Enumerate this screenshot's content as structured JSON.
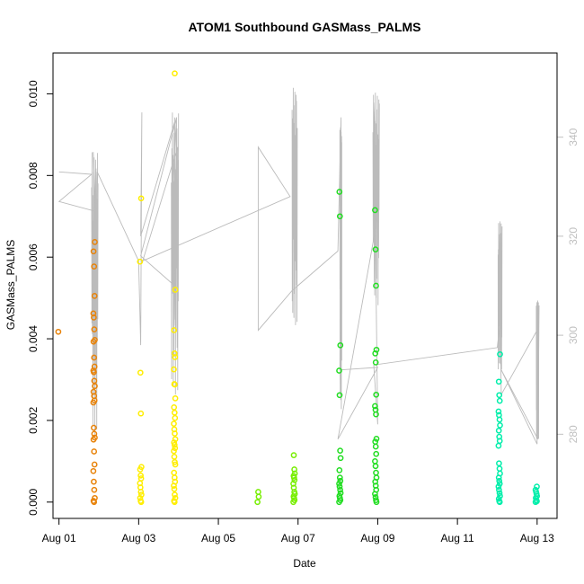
{
  "chart_data": {
    "type": "scatter",
    "title": "ATOM1 Southbound GASMass_PALMS",
    "xlabel": "Date",
    "ylabel": "GASMass_PALMS",
    "x_ticks": [
      "Aug 01",
      "Aug 03",
      "Aug 05",
      "Aug 07",
      "Aug 09",
      "Aug 11",
      "Aug 13"
    ],
    "x_tick_days": [
      1,
      3,
      5,
      7,
      9,
      11,
      13
    ],
    "xlim": [
      0.85,
      13.5
    ],
    "ylim": [
      -0.0004,
      0.011
    ],
    "y_ticks": [
      0.0,
      0.002,
      0.004,
      0.006,
      0.008,
      0.01
    ],
    "y_tick_labels": [
      "0.000",
      "0.002",
      "0.004",
      "0.006",
      "0.008",
      "0.010"
    ],
    "right_axis": {
      "ylim": [
        263,
        357
      ],
      "ticks": [
        280,
        300,
        320,
        340
      ],
      "tick_labels": [
        "280",
        "300",
        "320",
        "340"
      ],
      "color": "#c0c0c0"
    },
    "right_line": {
      "color": "#bbbbbb",
      "points": [
        [
          1.0,
          333
        ],
        [
          1.82,
          332.5
        ],
        [
          1.0,
          327
        ],
        [
          1.92,
          325
        ],
        [
          1.86,
          337
        ],
        [
          1.92,
          318
        ],
        [
          1.96,
          333
        ],
        [
          3.0,
          315
        ],
        [
          3.05,
          298
        ],
        [
          3.08,
          345
        ],
        [
          3.05,
          320
        ],
        [
          3.9,
          343
        ],
        [
          3.9,
          314
        ],
        [
          3.95,
          344
        ],
        [
          3.05,
          316
        ],
        [
          3.9,
          310
        ],
        [
          3.95,
          344
        ],
        [
          3.85,
          330
        ],
        [
          3.92,
          302
        ],
        [
          3.98,
          338
        ],
        [
          3.1,
          315
        ],
        [
          6.8,
          328
        ],
        [
          6.0,
          338
        ],
        [
          6.0,
          301
        ],
        [
          6.85,
          309
        ],
        [
          8.0,
          317
        ],
        [
          8.08,
          344
        ],
        [
          8.05,
          293
        ],
        [
          9.0,
          293.5
        ],
        [
          8.0,
          279
        ],
        [
          9.0,
          324
        ],
        [
          8.9,
          347
        ],
        [
          9.0,
          282
        ],
        [
          8.9,
          294
        ],
        [
          12.0,
          297.5
        ],
        [
          12.1,
          305
        ],
        [
          12.05,
          319
        ],
        [
          12.1,
          288
        ],
        [
          13.0,
          301
        ],
        [
          13.0,
          278
        ],
        [
          12.1,
          293
        ],
        [
          13.02,
          279
        ],
        [
          13.05,
          306
        ]
      ],
      "bursts": [
        {
          "x0": 1.82,
          "x1": 1.98,
          "lo": 280,
          "hi": 337
        },
        {
          "x0": 3.82,
          "x1": 4.0,
          "lo": 288,
          "hi": 345
        },
        {
          "x0": 6.85,
          "x1": 6.98,
          "lo": 302,
          "hi": 350
        },
        {
          "x0": 8.05,
          "x1": 8.1,
          "lo": 285,
          "hi": 342
        },
        {
          "x0": 8.88,
          "x1": 9.04,
          "lo": 306,
          "hi": 349
        },
        {
          "x0": 12.02,
          "x1": 12.12,
          "lo": 293,
          "hi": 323
        },
        {
          "x0": 12.98,
          "x1": 13.04,
          "lo": 279,
          "hi": 307
        }
      ]
    },
    "series": [
      {
        "color": "#e8830a",
        "x": 1.0,
        "values": [
          0.00417
        ]
      },
      {
        "color": "#e8830a",
        "x": 1.88,
        "values": [
          0.00637,
          0.00614,
          0.00577,
          0.00505,
          0.00462,
          0.00452,
          0.00423,
          0.00397,
          0.00393,
          0.00354,
          0.00332,
          0.00322,
          0.00318,
          0.00297,
          0.00284,
          0.0027,
          0.0026,
          0.00249,
          0.00244,
          0.00182,
          0.00167,
          0.00158,
          0.00153,
          0.00124,
          0.00092,
          0.00076,
          0.0005,
          0.0003,
          0.0001,
          3e-05,
          0.0
        ]
      },
      {
        "color": "#ffee00",
        "x": 3.05,
        "values": [
          0.00744,
          0.00589,
          0.00317,
          0.00217,
          0.00086,
          0.0008,
          0.00065,
          0.00058,
          0.00046,
          0.00036,
          0.00025,
          0.00018,
          0.0001,
          3e-05,
          0.0
        ]
      },
      {
        "color": "#ffee00",
        "x": 3.9,
        "values": [
          0.0105,
          0.0052,
          0.00421,
          0.00364,
          0.00355,
          0.00325,
          0.00289,
          0.00288,
          0.00254,
          0.00232,
          0.00219,
          0.00206,
          0.00192,
          0.00178,
          0.00168,
          0.00154,
          0.00146,
          0.0014,
          0.00132,
          0.00125,
          0.00111,
          0.00098,
          0.00092,
          0.00072,
          0.0006,
          0.0005,
          0.0004,
          0.00032,
          0.00018,
          0.0001,
          3e-05,
          0.0
        ]
      },
      {
        "color": "#77ee00",
        "x": 6.0,
        "values": [
          0.00025,
          0.00013,
          0.0
        ]
      },
      {
        "color": "#77ee00",
        "x": 6.9,
        "values": [
          0.00115,
          0.0008,
          0.0007,
          0.00064,
          0.0006,
          0.00054,
          0.00045,
          0.00035,
          0.00025,
          0.0002,
          0.00014,
          0.0001,
          5e-05,
          0.0
        ]
      },
      {
        "color": "#22dd22",
        "x": 8.05,
        "values": [
          0.0076,
          0.007,
          0.00384,
          0.00322,
          0.00262,
          0.00126,
          0.00108,
          0.00078,
          0.0006,
          0.00052,
          0.00045,
          0.00038,
          0.0003,
          0.00022,
          0.00015,
          0.0001,
          5e-05,
          0.0
        ]
      },
      {
        "color": "#22dd22",
        "x": 8.95,
        "values": [
          0.00715,
          0.00619,
          0.0053,
          0.00373,
          0.00364,
          0.00342,
          0.00263,
          0.00235,
          0.00226,
          0.00215,
          0.00155,
          0.00148,
          0.00136,
          0.00118,
          0.001,
          0.00088,
          0.00072,
          0.0006,
          0.0005,
          0.0004,
          0.0003,
          0.0002,
          0.00012,
          5e-05,
          0.0
        ]
      },
      {
        "color": "#00eeaa",
        "x": 12.05,
        "values": [
          0.00362,
          0.00295,
          0.00262,
          0.00248,
          0.00222,
          0.00213,
          0.00202,
          0.00188,
          0.00175,
          0.0016,
          0.0015,
          0.00138,
          0.00095,
          0.00082,
          0.0007,
          0.0006,
          0.00052,
          0.00045,
          0.00038,
          0.0003,
          0.00022,
          0.00015,
          8e-05,
          2e-05,
          0.0
        ]
      },
      {
        "color": "#00eeaa",
        "x": 12.98,
        "values": [
          0.00038,
          0.0003,
          0.00025,
          0.0002,
          0.00015,
          0.0001,
          5e-05,
          2e-05,
          0.0
        ]
      }
    ]
  }
}
